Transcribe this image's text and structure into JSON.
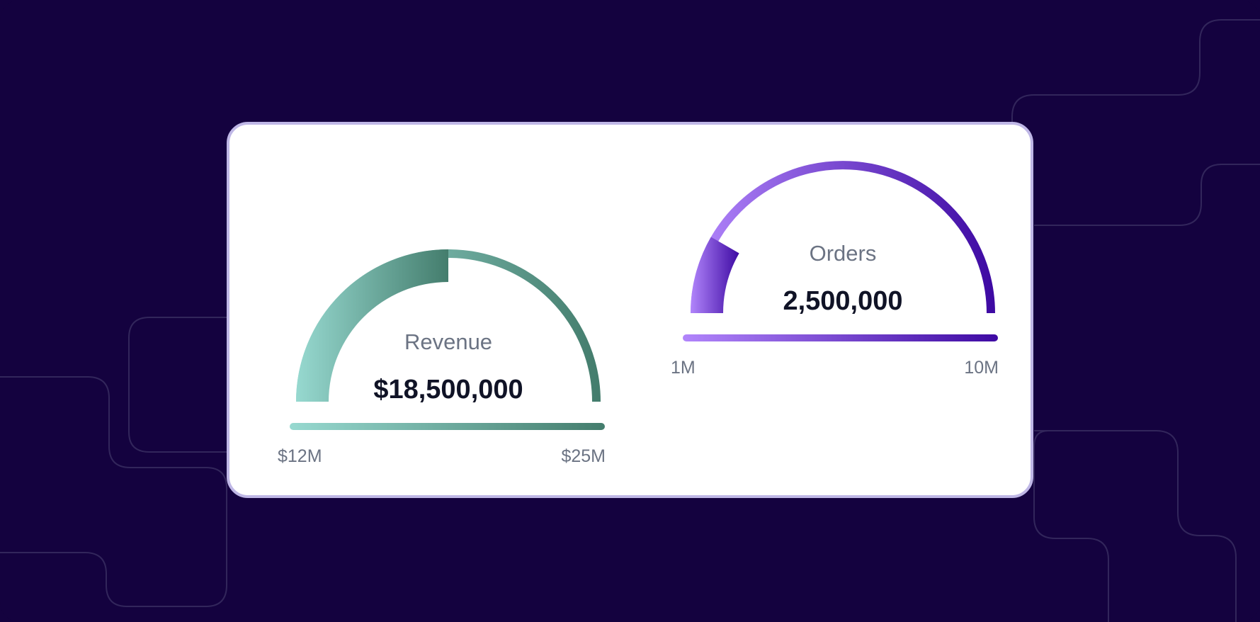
{
  "colors": {
    "background": "#14023f",
    "card": "#ffffff",
    "card_border": "#bfb7e6",
    "revenue_start": "#97d9d0",
    "revenue_end": "#447d6d",
    "orders_start": "#b185fb",
    "orders_end": "#3e0aa3"
  },
  "chart_data": [
    {
      "type": "gauge",
      "title": "Revenue",
      "value_label": "$18,500,000",
      "value": 18500000,
      "min": 12000000,
      "max": 25000000,
      "min_label": "$12M",
      "max_label": "$25M"
    },
    {
      "type": "gauge",
      "title": "Orders",
      "value_label": "2,500,000",
      "value": 2500000,
      "min": 1000000,
      "max": 10000000,
      "min_label": "1M",
      "max_label": "10M"
    }
  ]
}
